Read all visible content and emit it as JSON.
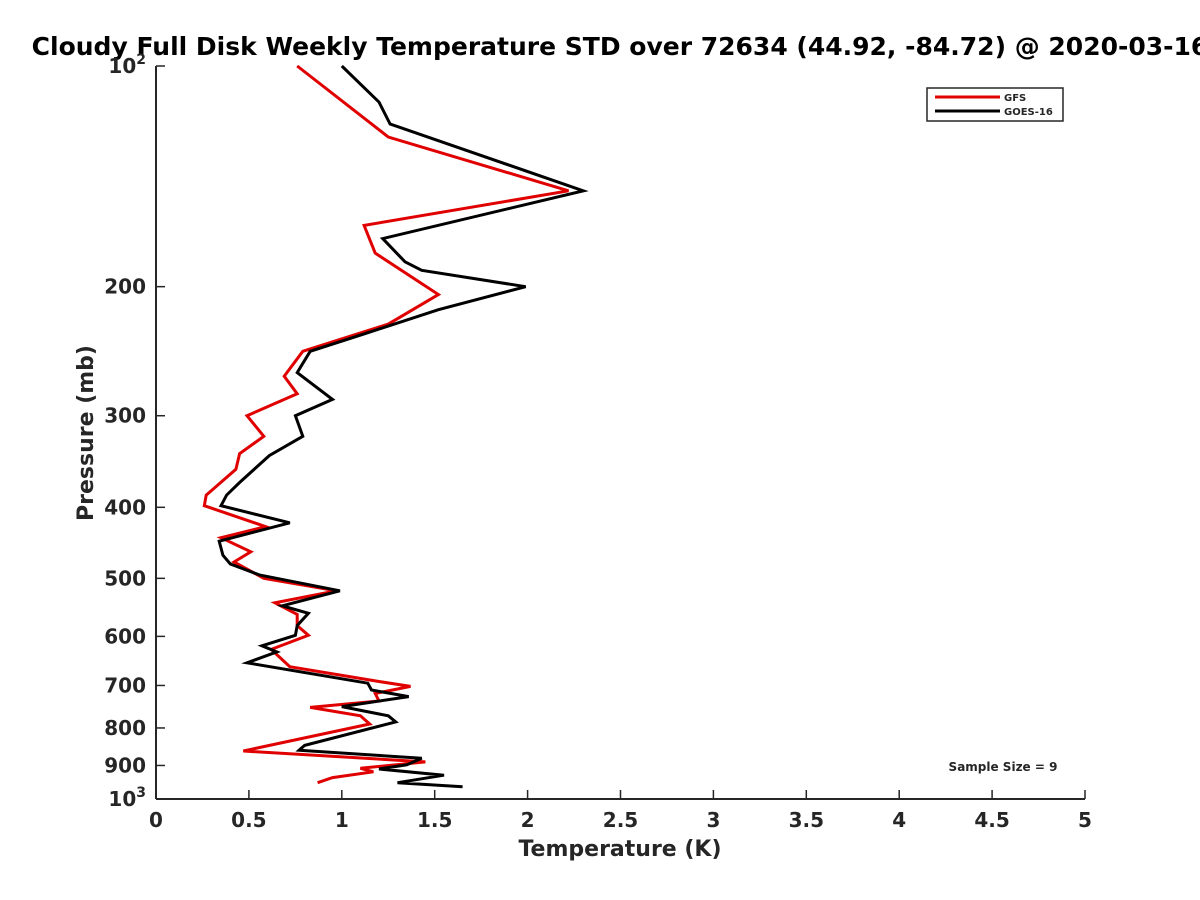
{
  "chart_data": {
    "type": "line",
    "title": "Cloudy Full Disk Weekly Temperature STD over 72634 (44.92, -84.72) @ 2020-03-16",
    "xlabel": "Temperature (K)",
    "ylabel": "Pressure (mb)",
    "xlim": [
      0,
      5
    ],
    "ylim": [
      100,
      1000
    ],
    "y_scale": "log",
    "y_reversed": true,
    "grid": false,
    "legend_position": "top-right",
    "x_ticks": [
      {
        "value": 0,
        "label": "0"
      },
      {
        "value": 0.5,
        "label": "0.5"
      },
      {
        "value": 1,
        "label": "1"
      },
      {
        "value": 1.5,
        "label": "1.5"
      },
      {
        "value": 2,
        "label": "2"
      },
      {
        "value": 2.5,
        "label": "2.5"
      },
      {
        "value": 3,
        "label": "3"
      },
      {
        "value": 3.5,
        "label": "3.5"
      },
      {
        "value": 4,
        "label": "4"
      },
      {
        "value": 4.5,
        "label": "4.5"
      },
      {
        "value": 5,
        "label": "5"
      }
    ],
    "y_ticks": [
      {
        "value": 100,
        "base": "10",
        "exp": "2"
      },
      {
        "value": 200,
        "label": "200"
      },
      {
        "value": 300,
        "label": "300"
      },
      {
        "value": 400,
        "label": "400"
      },
      {
        "value": 500,
        "label": "500"
      },
      {
        "value": 600,
        "label": "600"
      },
      {
        "value": 700,
        "label": "700"
      },
      {
        "value": 800,
        "label": "800"
      },
      {
        "value": 900,
        "label": "900"
      },
      {
        "value": 1000,
        "base": "10",
        "exp": "3"
      }
    ],
    "annotation": "Sample Size = 9",
    "series": [
      {
        "name": "GFS",
        "color": "#e00000",
        "points": [
          [
            0.76,
            100
          ],
          [
            1.25,
            125
          ],
          [
            2.22,
            148
          ],
          [
            1.12,
            165
          ],
          [
            1.18,
            180
          ],
          [
            1.52,
            205
          ],
          [
            1.25,
            225
          ],
          [
            0.79,
            245
          ],
          [
            0.69,
            265
          ],
          [
            0.76,
            280
          ],
          [
            0.49,
            300
          ],
          [
            0.58,
            320
          ],
          [
            0.45,
            338
          ],
          [
            0.43,
            355
          ],
          [
            0.27,
            385
          ],
          [
            0.26,
            398
          ],
          [
            0.59,
            425
          ],
          [
            0.35,
            440
          ],
          [
            0.51,
            460
          ],
          [
            0.42,
            475
          ],
          [
            0.58,
            500
          ],
          [
            0.97,
            520
          ],
          [
            0.64,
            540
          ],
          [
            0.76,
            560
          ],
          [
            0.76,
            580
          ],
          [
            0.82,
            598
          ],
          [
            0.62,
            625
          ],
          [
            0.72,
            660
          ],
          [
            1.18,
            690
          ],
          [
            1.37,
            702
          ],
          [
            1.18,
            718
          ],
          [
            1.2,
            735
          ],
          [
            0.83,
            750
          ],
          [
            1.1,
            770
          ],
          [
            1.15,
            790
          ],
          [
            0.47,
            860
          ],
          [
            1.45,
            890
          ],
          [
            1.1,
            908
          ],
          [
            1.17,
            918
          ],
          [
            0.95,
            935
          ],
          [
            0.87,
            950
          ]
        ]
      },
      {
        "name": "GOES-16",
        "color": "#000000",
        "points": [
          [
            1.0,
            100
          ],
          [
            1.2,
            112
          ],
          [
            1.26,
            120
          ],
          [
            2.3,
            148
          ],
          [
            1.22,
            172
          ],
          [
            1.34,
            185
          ],
          [
            1.43,
            190
          ],
          [
            1.99,
            200
          ],
          [
            1.52,
            215
          ],
          [
            1.12,
            232
          ],
          [
            0.83,
            245
          ],
          [
            0.76,
            262
          ],
          [
            0.95,
            285
          ],
          [
            0.75,
            300
          ],
          [
            0.79,
            320
          ],
          [
            0.61,
            340
          ],
          [
            0.45,
            370
          ],
          [
            0.38,
            385
          ],
          [
            0.35,
            398
          ],
          [
            0.72,
            420
          ],
          [
            0.34,
            445
          ],
          [
            0.36,
            465
          ],
          [
            0.4,
            478
          ],
          [
            0.56,
            495
          ],
          [
            0.99,
            520
          ],
          [
            0.68,
            545
          ],
          [
            0.82,
            558
          ],
          [
            0.76,
            580
          ],
          [
            0.75,
            598
          ],
          [
            0.57,
            618
          ],
          [
            0.65,
            630
          ],
          [
            0.49,
            652
          ],
          [
            1.14,
            695
          ],
          [
            1.16,
            710
          ],
          [
            1.36,
            725
          ],
          [
            1.0,
            748
          ],
          [
            1.25,
            770
          ],
          [
            1.29,
            785
          ],
          [
            0.8,
            845
          ],
          [
            0.77,
            858
          ],
          [
            1.43,
            880
          ],
          [
            1.35,
            898
          ],
          [
            1.2,
            910
          ],
          [
            1.55,
            928
          ],
          [
            1.3,
            950
          ],
          [
            1.65,
            962
          ]
        ]
      }
    ]
  }
}
